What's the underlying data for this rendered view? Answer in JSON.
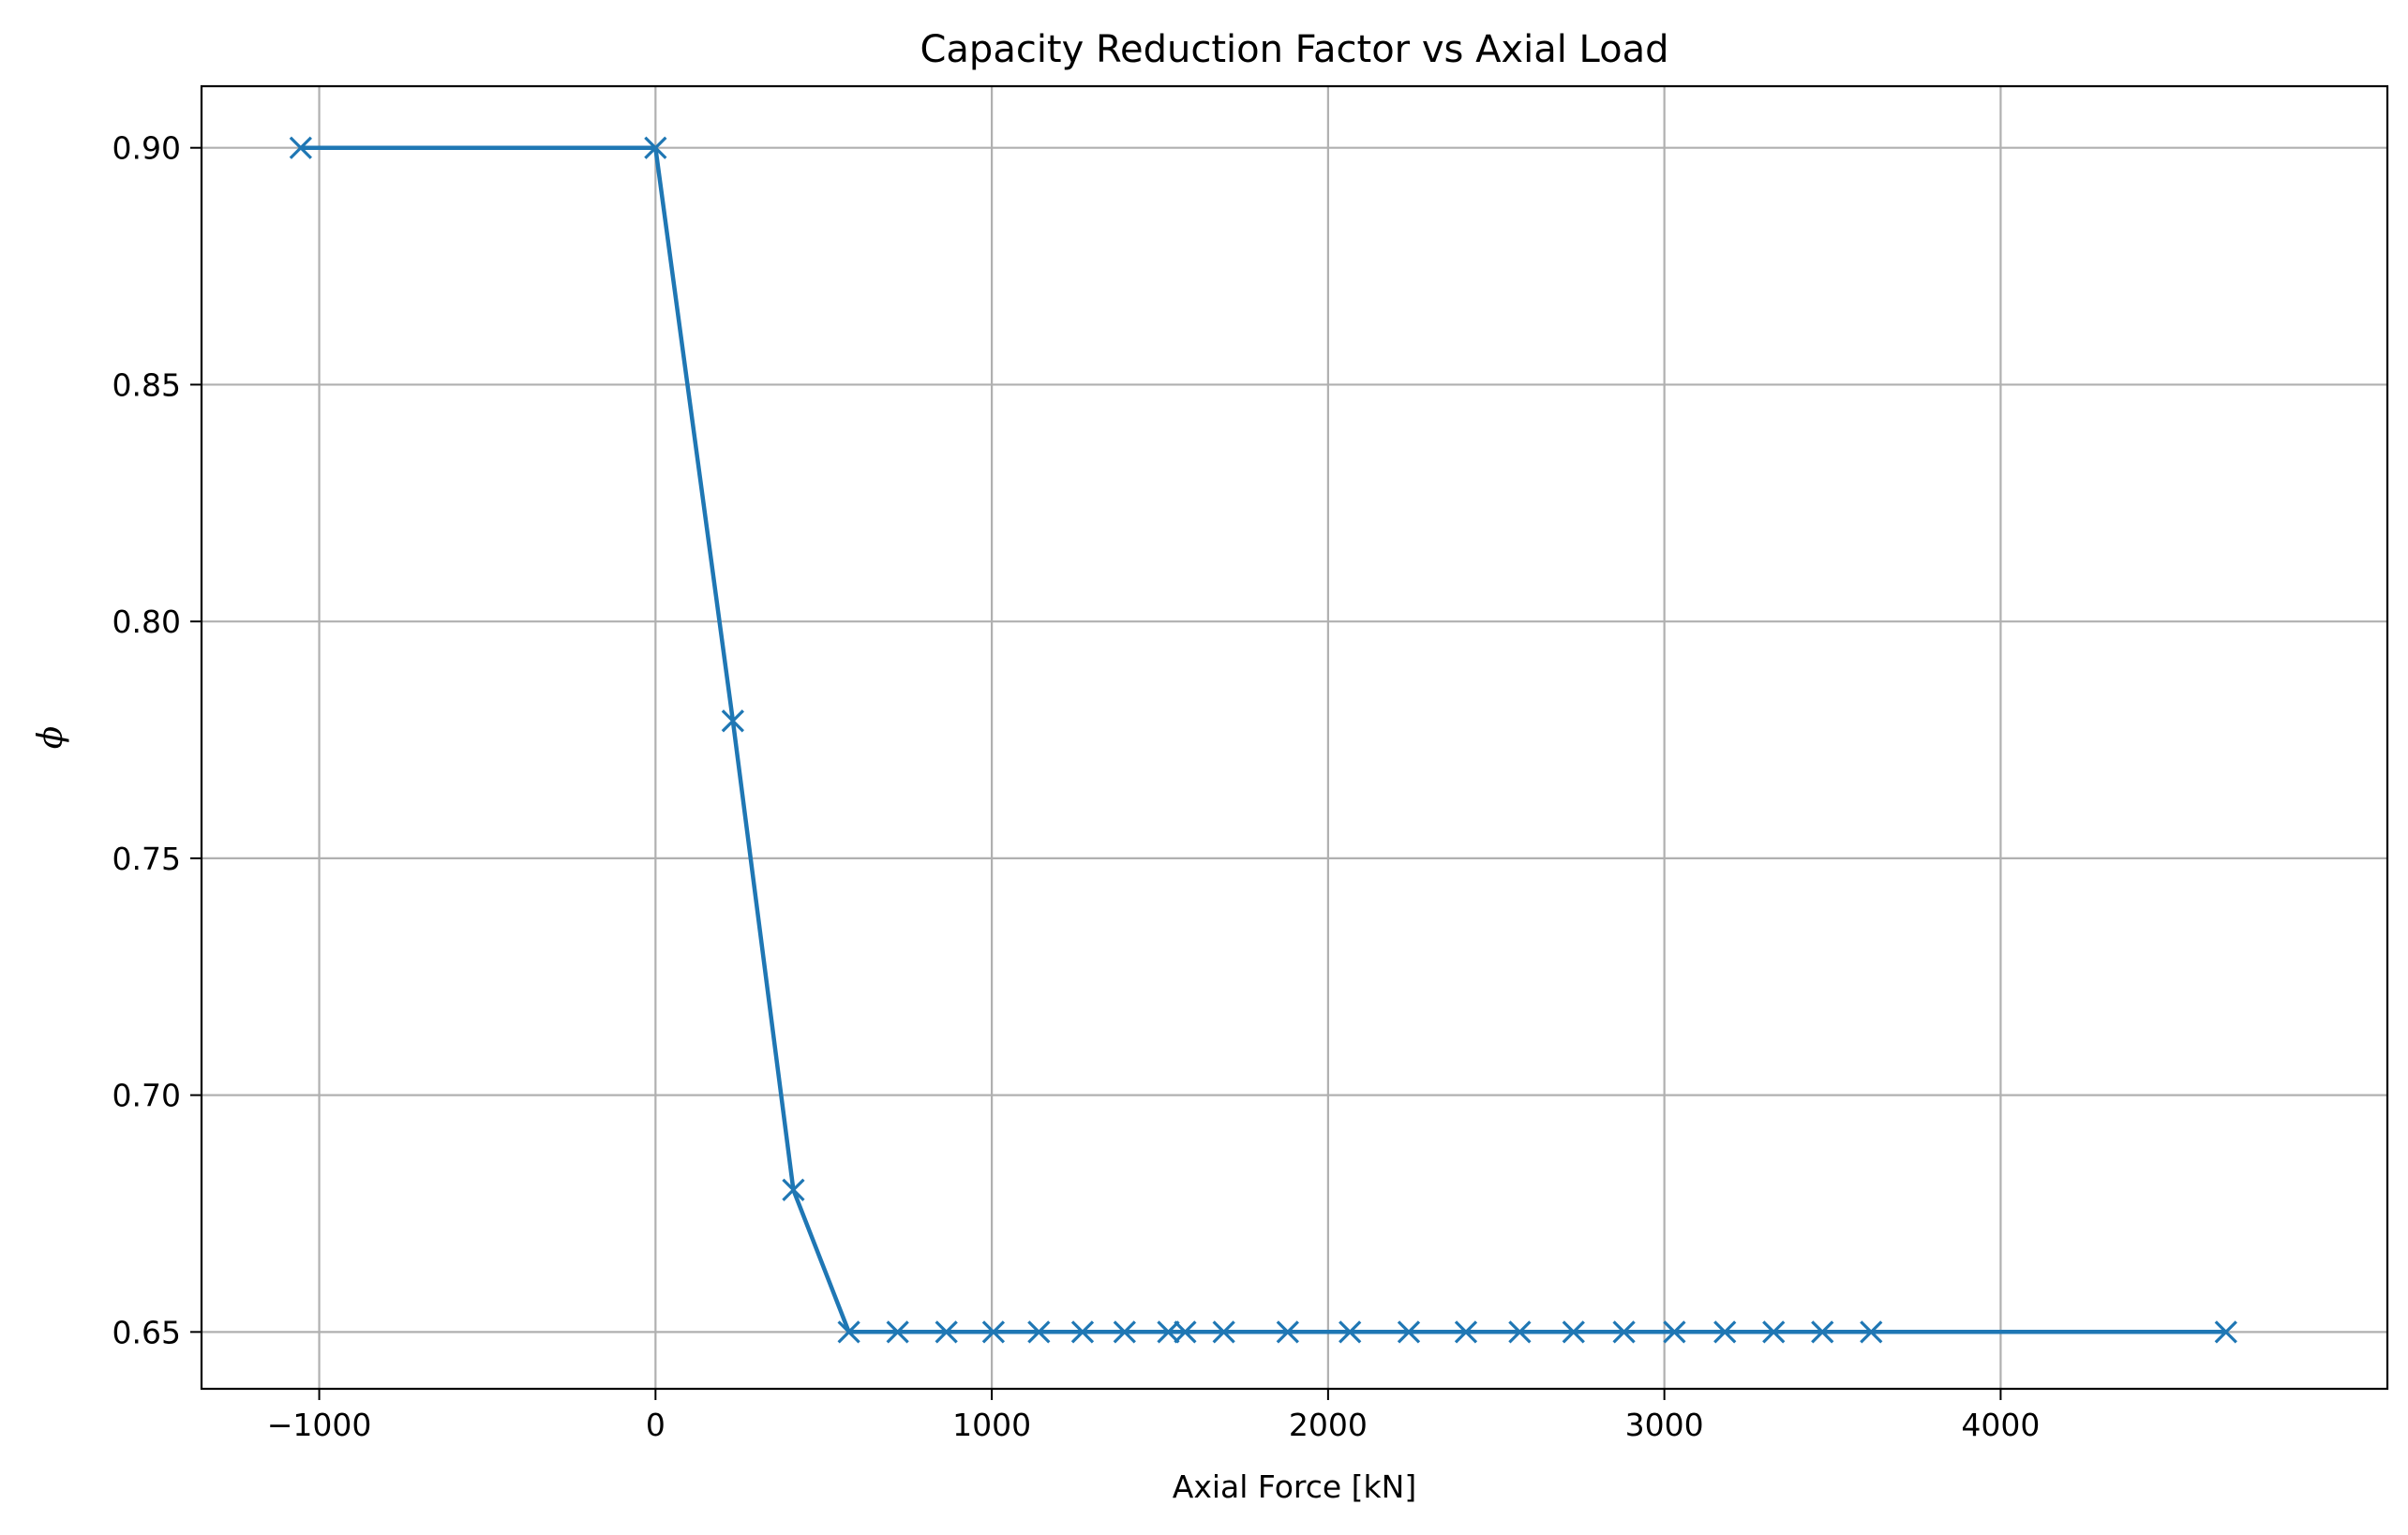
{
  "chart_data": {
    "type": "line",
    "title": "Capacity Reduction Factor vs Axial Load",
    "xlabel": "Axial Force [kN]",
    "ylabel": "ϕ",
    "xlim": [
      -1350,
      5150
    ],
    "ylim": [
      0.638,
      0.913
    ],
    "xticks": [
      -1000,
      0,
      1000,
      2000,
      3000,
      4000
    ],
    "xtick_labels": [
      "−1000",
      "0",
      "1000",
      "2000",
      "3000",
      "4000"
    ],
    "yticks": [
      0.65,
      0.7,
      0.75,
      0.8,
      0.85,
      0.9
    ],
    "ytick_labels": [
      "0.65",
      "0.70",
      "0.75",
      "0.80",
      "0.85",
      "0.90"
    ],
    "grid": true,
    "marker": "x",
    "color": "#1f77b4",
    "series": [
      {
        "x": [
          -1055,
          0,
          230,
          410,
          575,
          720,
          865,
          1005,
          1140,
          1270,
          1395,
          1525,
          1575,
          1690,
          1880,
          2065,
          2240,
          2410,
          2570,
          2730,
          2880,
          3030,
          3180,
          3325,
          3470,
          3615,
          4670
        ],
        "y": [
          0.9,
          0.9,
          0.779,
          0.68,
          0.65,
          0.65,
          0.65,
          0.65,
          0.65,
          0.65,
          0.65,
          0.65,
          0.65,
          0.65,
          0.65,
          0.65,
          0.65,
          0.65,
          0.65,
          0.65,
          0.65,
          0.65,
          0.65,
          0.65,
          0.65,
          0.65,
          0.65
        ]
      }
    ]
  }
}
